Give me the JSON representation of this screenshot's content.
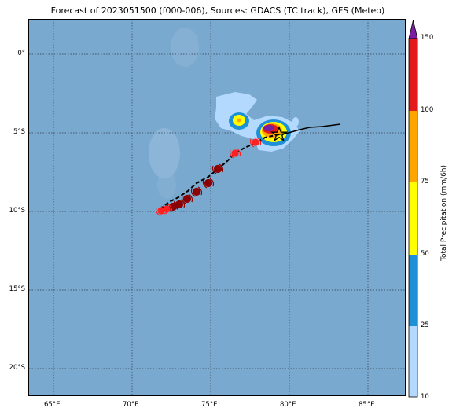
{
  "title": "Forecast of 2023051500 (f000-006), Sources: GDACS (TC track), GFS (Meteo)",
  "map": {
    "background_color": "#7aa9cf",
    "grid": "dotted",
    "lon_labels": [
      "65°E",
      "70°E",
      "75°E",
      "80°E",
      "85°E"
    ],
    "lat_labels": [
      "0°",
      "5°S",
      "10°S",
      "15°S",
      "20°S"
    ]
  },
  "track": {
    "observed_color": "#000000",
    "forecast_style": "dashed",
    "forecast_points_dark": [
      "#8b0000"
    ],
    "forecast_points_recent": [
      "#ff2020"
    ],
    "current_position_icon": "star-icon"
  },
  "colorbar": {
    "label": "Total Precipitation (mm/6h)",
    "ticks": [
      "10",
      "25",
      "50",
      "75",
      "100",
      "150"
    ],
    "colors": [
      "#b3d9ff",
      "#1e90d8",
      "#ffff00",
      "#ffa500",
      "#e31a1c",
      "#7b1fa2"
    ]
  }
}
